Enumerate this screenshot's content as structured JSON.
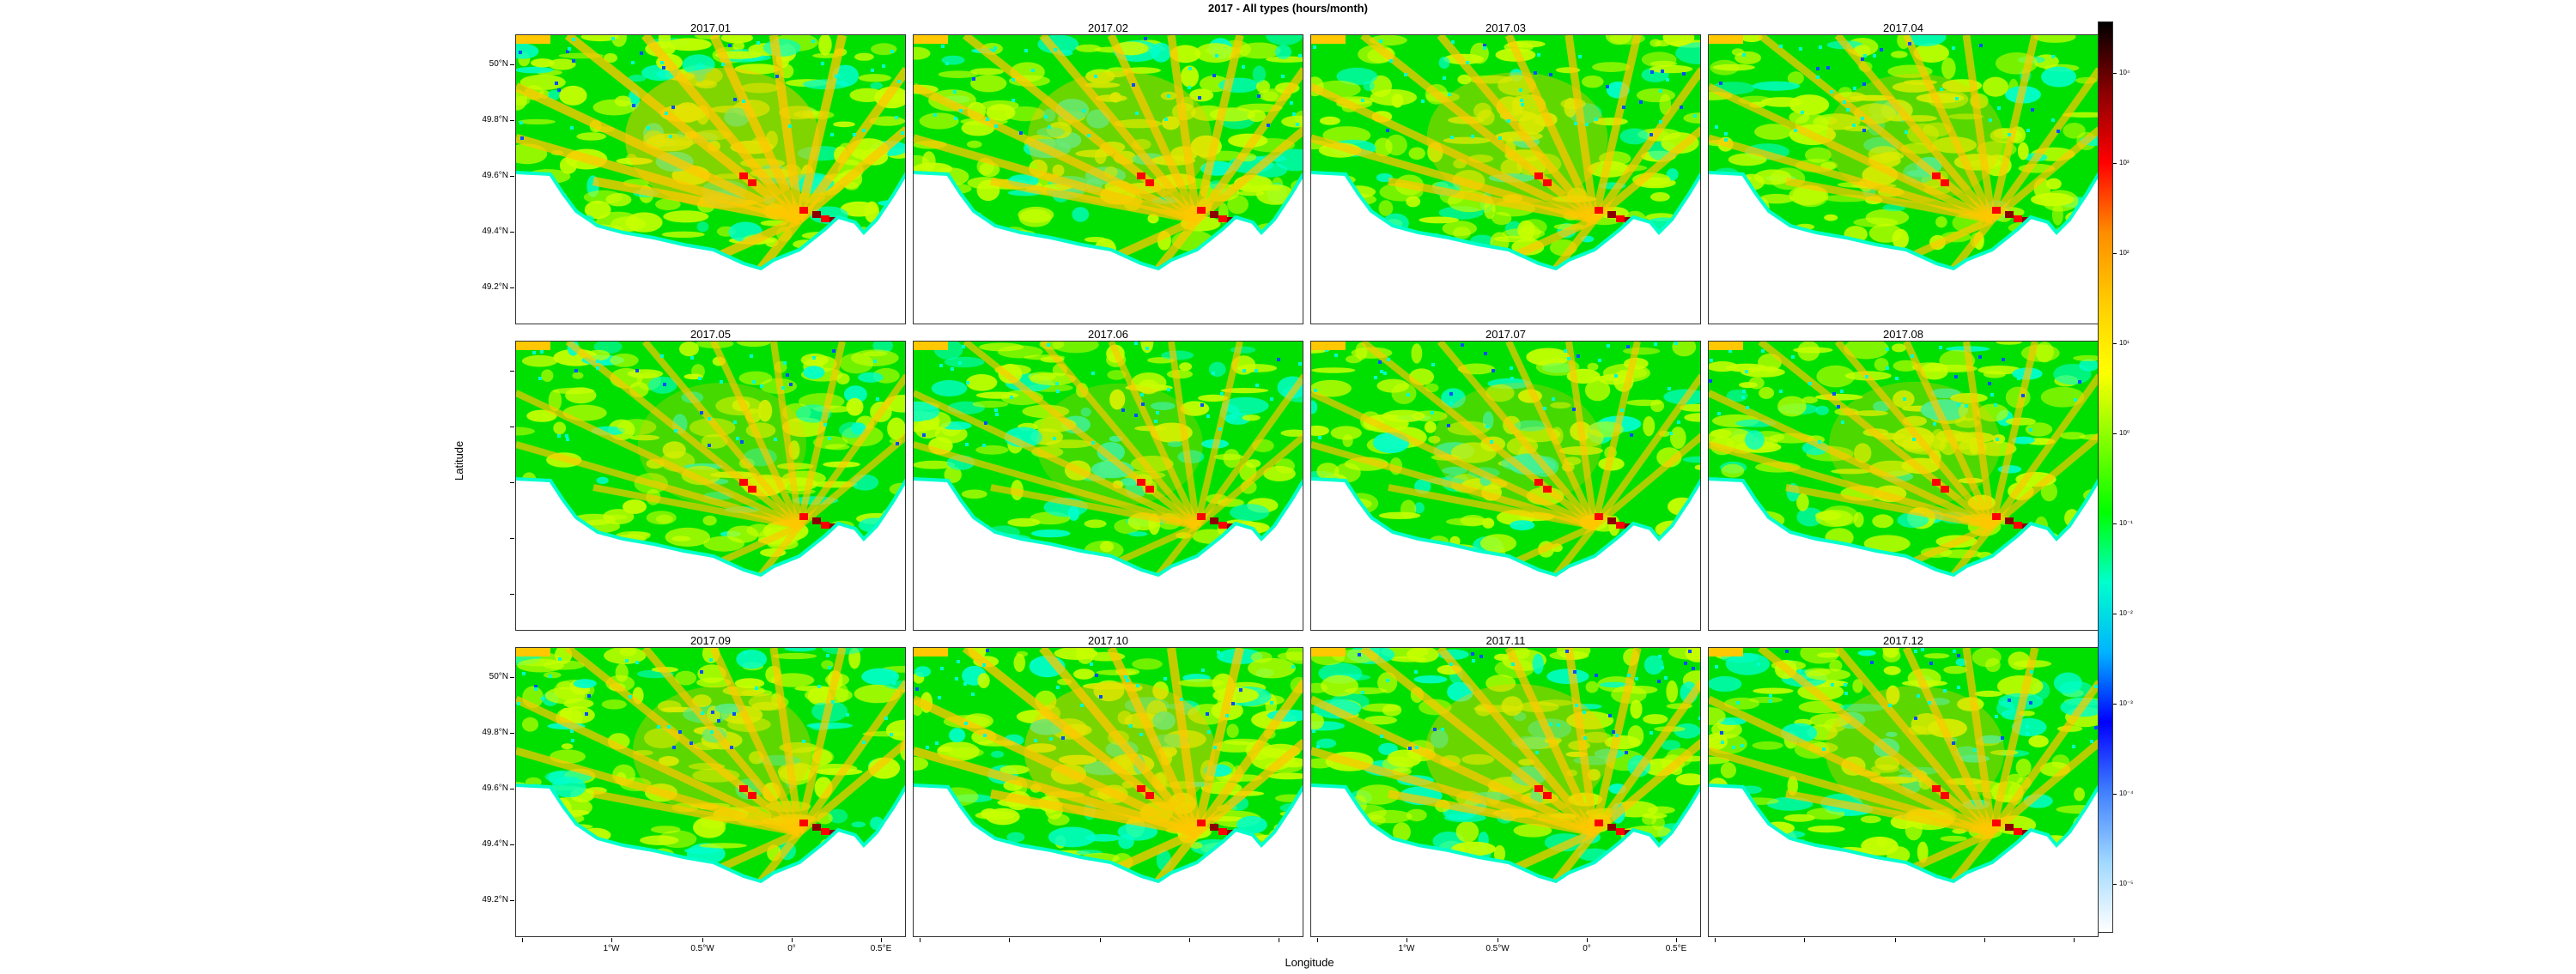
{
  "title": "2017 - All types (hours/month)",
  "xlabel": "Longitude",
  "ylabel": "Latitude",
  "panels": [
    {
      "label": "2017.01",
      "intensity": 0.55
    },
    {
      "label": "2017.02",
      "intensity": 0.45
    },
    {
      "label": "2017.03",
      "intensity": 0.42
    },
    {
      "label": "2017.04",
      "intensity": 0.38
    },
    {
      "label": "2017.05",
      "intensity": 0.3
    },
    {
      "label": "2017.06",
      "intensity": 0.28
    },
    {
      "label": "2017.07",
      "intensity": 0.3
    },
    {
      "label": "2017.08",
      "intensity": 0.33
    },
    {
      "label": "2017.09",
      "intensity": 0.4
    },
    {
      "label": "2017.10",
      "intensity": 0.52
    },
    {
      "label": "2017.11",
      "intensity": 0.45
    },
    {
      "label": "2017.12",
      "intensity": 0.4
    }
  ],
  "lat_ticks": [
    "50°N",
    "49.8°N",
    "49.6°N",
    "49.4°N",
    "49.2°N"
  ],
  "lon_ticks": [
    "1°W",
    "0.5°W",
    "0°",
    "0.5°E"
  ],
  "colorbar": {
    "labels": [
      "10⁴",
      "10³",
      "10²",
      "10¹",
      "10⁰",
      "10⁻¹",
      "10⁻²",
      "10⁻³",
      "10⁻⁴",
      "10⁻⁵"
    ],
    "colors": [
      "#000000",
      "#8b0000",
      "#ff0000",
      "#ff8c00",
      "#ffcc00",
      "#ffff00",
      "#80ff00",
      "#00ff00",
      "#00ffcc",
      "#00b4ff",
      "#0000ff",
      "#4080ff",
      "#a0d8ff",
      "#ffffff"
    ]
  },
  "map_colors": {
    "land": "#ffffff",
    "sea_low": "#00e000",
    "sea_mid": "#c8ff00",
    "sea_high": "#ffc800",
    "hot": "#ff0000",
    "very_hot": "#8b0000",
    "cold": "#00ffcc",
    "coldest": "#0050ff"
  }
}
